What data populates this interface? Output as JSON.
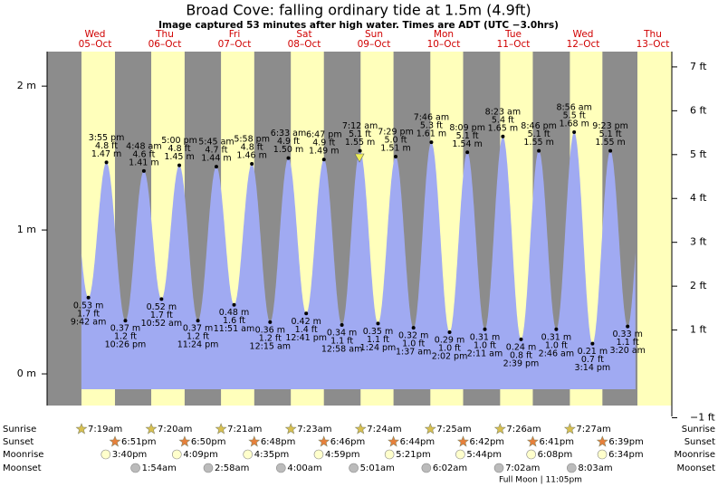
{
  "chart_data": {
    "type": "tide",
    "title": "Broad Cove: falling  ordinary tide at 1.5m (4.9ft)",
    "subtitle": "Image captured 53 minutes after high water. Times are ADT (UTC −3.0hrs)",
    "ylim": [
      -0.22,
      2.24
    ],
    "yticks": [
      {
        "value": 0,
        "label": "0 m"
      },
      {
        "value": 1,
        "label": "1 m"
      },
      {
        "value": 2,
        "label": "2 m"
      }
    ],
    "y2ticks": [
      {
        "value": -1,
        "label": "−1 ft"
      },
      {
        "value": 1,
        "label": "1 ft"
      },
      {
        "value": 2,
        "label": "2 ft"
      },
      {
        "value": 3,
        "label": "3 ft"
      },
      {
        "value": 4,
        "label": "4 ft"
      },
      {
        "value": 5,
        "label": "5 ft"
      },
      {
        "value": 6,
        "label": "6 ft"
      },
      {
        "value": 7,
        "label": "7 ft"
      }
    ],
    "rows": {
      "sunrise": "Sunrise",
      "sunset": "Sunset",
      "moonrise": "Moonrise",
      "moonset": "Moonset"
    },
    "footer": "Full Moon | 11:05pm",
    "days": [
      {
        "weekday": "Wed",
        "date": "05–Oct",
        "sunrise": "7:19am",
        "sunset": "6:51pm",
        "moonrise": "3:40pm",
        "tides": [
          {
            "time": "9:42 am",
            "ft": "1.7 ft",
            "m": 0.53,
            "m_label": "0.53 m"
          },
          {
            "time": "3:55 pm",
            "ft": "4.8 ft",
            "m": 1.47,
            "m_label": "1.47 m"
          },
          {
            "time": "10:26 pm",
            "ft": "1.2 ft",
            "m": 0.37,
            "m_label": "0.37 m"
          }
        ]
      },
      {
        "weekday": "Thu",
        "date": "06–Oct",
        "sunrise": "7:20am",
        "sunset": "6:50pm",
        "moonrise": "4:09pm",
        "moonset": "1:54am",
        "tides": [
          {
            "time": "4:48 am",
            "ft": "4.6 ft",
            "m": 1.41,
            "m_label": "1.41 m"
          },
          {
            "time": "10:52 am",
            "ft": "1.7 ft",
            "m": 0.52,
            "m_label": "0.52 m"
          },
          {
            "time": "5:00 pm",
            "ft": "4.8 ft",
            "m": 1.45,
            "m_label": "1.45 m"
          },
          {
            "time": "11:24 pm",
            "ft": "1.2 ft",
            "m": 0.37,
            "m_label": "0.37 m"
          }
        ]
      },
      {
        "weekday": "Fri",
        "date": "07–Oct",
        "sunrise": "7:21am",
        "sunset": "6:48pm",
        "moonrise": "4:35pm",
        "moonset": "2:58am",
        "tides": [
          {
            "time": "5:45 am",
            "ft": "4.7 ft",
            "m": 1.44,
            "m_label": "1.44 m"
          },
          {
            "time": "11:51 am",
            "ft": "1.6 ft",
            "m": 0.48,
            "m_label": "0.48 m"
          },
          {
            "time": "5:58 pm",
            "ft": "4.8 ft",
            "m": 1.46,
            "m_label": "1.46 m"
          }
        ]
      },
      {
        "weekday": "Sat",
        "date": "08–Oct",
        "sunrise": "7:23am",
        "sunset": "6:46pm",
        "moonrise": "4:59pm",
        "moonset": "4:00am",
        "tides": [
          {
            "time": "12:15 am",
            "ft": "1.2 ft",
            "m": 0.36,
            "m_label": "0.36 m"
          },
          {
            "time": "6:33 am",
            "ft": "4.9 ft",
            "m": 1.5,
            "m_label": "1.50 m"
          },
          {
            "time": "12:41 pm",
            "ft": "1.4 ft",
            "m": 0.42,
            "m_label": "0.42 m"
          },
          {
            "time": "6:47 pm",
            "ft": "4.9 ft",
            "m": 1.49,
            "m_label": "1.49 m"
          }
        ]
      },
      {
        "weekday": "Sun",
        "date": "09–Oct",
        "sunrise": "7:24am",
        "sunset": "6:44pm",
        "moonrise": "5:21pm",
        "moonset": "5:01am",
        "tides": [
          {
            "time": "12:58 am",
            "ft": "1.1 ft",
            "m": 0.34,
            "m_label": "0.34 m"
          },
          {
            "time": "7:12 am",
            "ft": "5.1 ft",
            "m": 1.55,
            "m_label": "1.55 m"
          },
          {
            "time": "1:24 pm",
            "ft": "1.1 ft",
            "m": 0.35,
            "m_label": "0.35 m"
          },
          {
            "time": "7:29 pm",
            "ft": "5.0 ft",
            "m": 1.51,
            "m_label": "1.51 m"
          }
        ]
      },
      {
        "weekday": "Mon",
        "date": "10–Oct",
        "sunrise": "7:25am",
        "sunset": "6:42pm",
        "moonrise": "5:44pm",
        "moonset": "6:02am",
        "tides": [
          {
            "time": "1:37 am",
            "ft": "1.0 ft",
            "m": 0.32,
            "m_label": "0.32 m"
          },
          {
            "time": "7:46 am",
            "ft": "5.3 ft",
            "m": 1.61,
            "m_label": "1.61 m"
          },
          {
            "time": "2:02 pm",
            "ft": "1.0 ft",
            "m": 0.29,
            "m_label": "0.29 m"
          },
          {
            "time": "8:09 pm",
            "ft": "5.1 ft",
            "m": 1.54,
            "m_label": "1.54 m"
          }
        ]
      },
      {
        "weekday": "Tue",
        "date": "11–Oct",
        "sunrise": "7:26am",
        "sunset": "6:41pm",
        "moonrise": "6:08pm",
        "moonset": "7:02am",
        "tides": [
          {
            "time": "2:11 am",
            "ft": "1.0 ft",
            "m": 0.31,
            "m_label": "0.31 m"
          },
          {
            "time": "8:23 am",
            "ft": "5.4 ft",
            "m": 1.65,
            "m_label": "1.65 m"
          },
          {
            "time": "2:39 pm",
            "ft": "0.8 ft",
            "m": 0.24,
            "m_label": "0.24 m"
          },
          {
            "time": "8:46 pm",
            "ft": "5.1 ft",
            "m": 1.55,
            "m_label": "1.55 m"
          }
        ]
      },
      {
        "weekday": "Wed",
        "date": "12–Oct",
        "sunrise": "7:27am",
        "sunset": "6:39pm",
        "moonrise": "6:34pm",
        "moonset": "8:03am",
        "tides": [
          {
            "time": "2:46 am",
            "ft": "1.0 ft",
            "m": 0.31,
            "m_label": "0.31 m"
          },
          {
            "time": "8:56 am",
            "ft": "5.5 ft",
            "m": 1.68,
            "m_label": "1.68 m"
          },
          {
            "time": "3:14 pm",
            "ft": "0.7 ft",
            "m": 0.21,
            "m_label": "0.21 m"
          },
          {
            "time": "9:23 pm",
            "ft": "5.1 ft",
            "m": 1.55,
            "m_label": "1.55 m"
          }
        ]
      },
      {
        "weekday": "Thu",
        "date": "13–Oct",
        "tides": [
          {
            "time": "3:20 am",
            "ft": "1.1 ft",
            "m": 0.33,
            "m_label": "0.33 m"
          }
        ]
      }
    ]
  }
}
